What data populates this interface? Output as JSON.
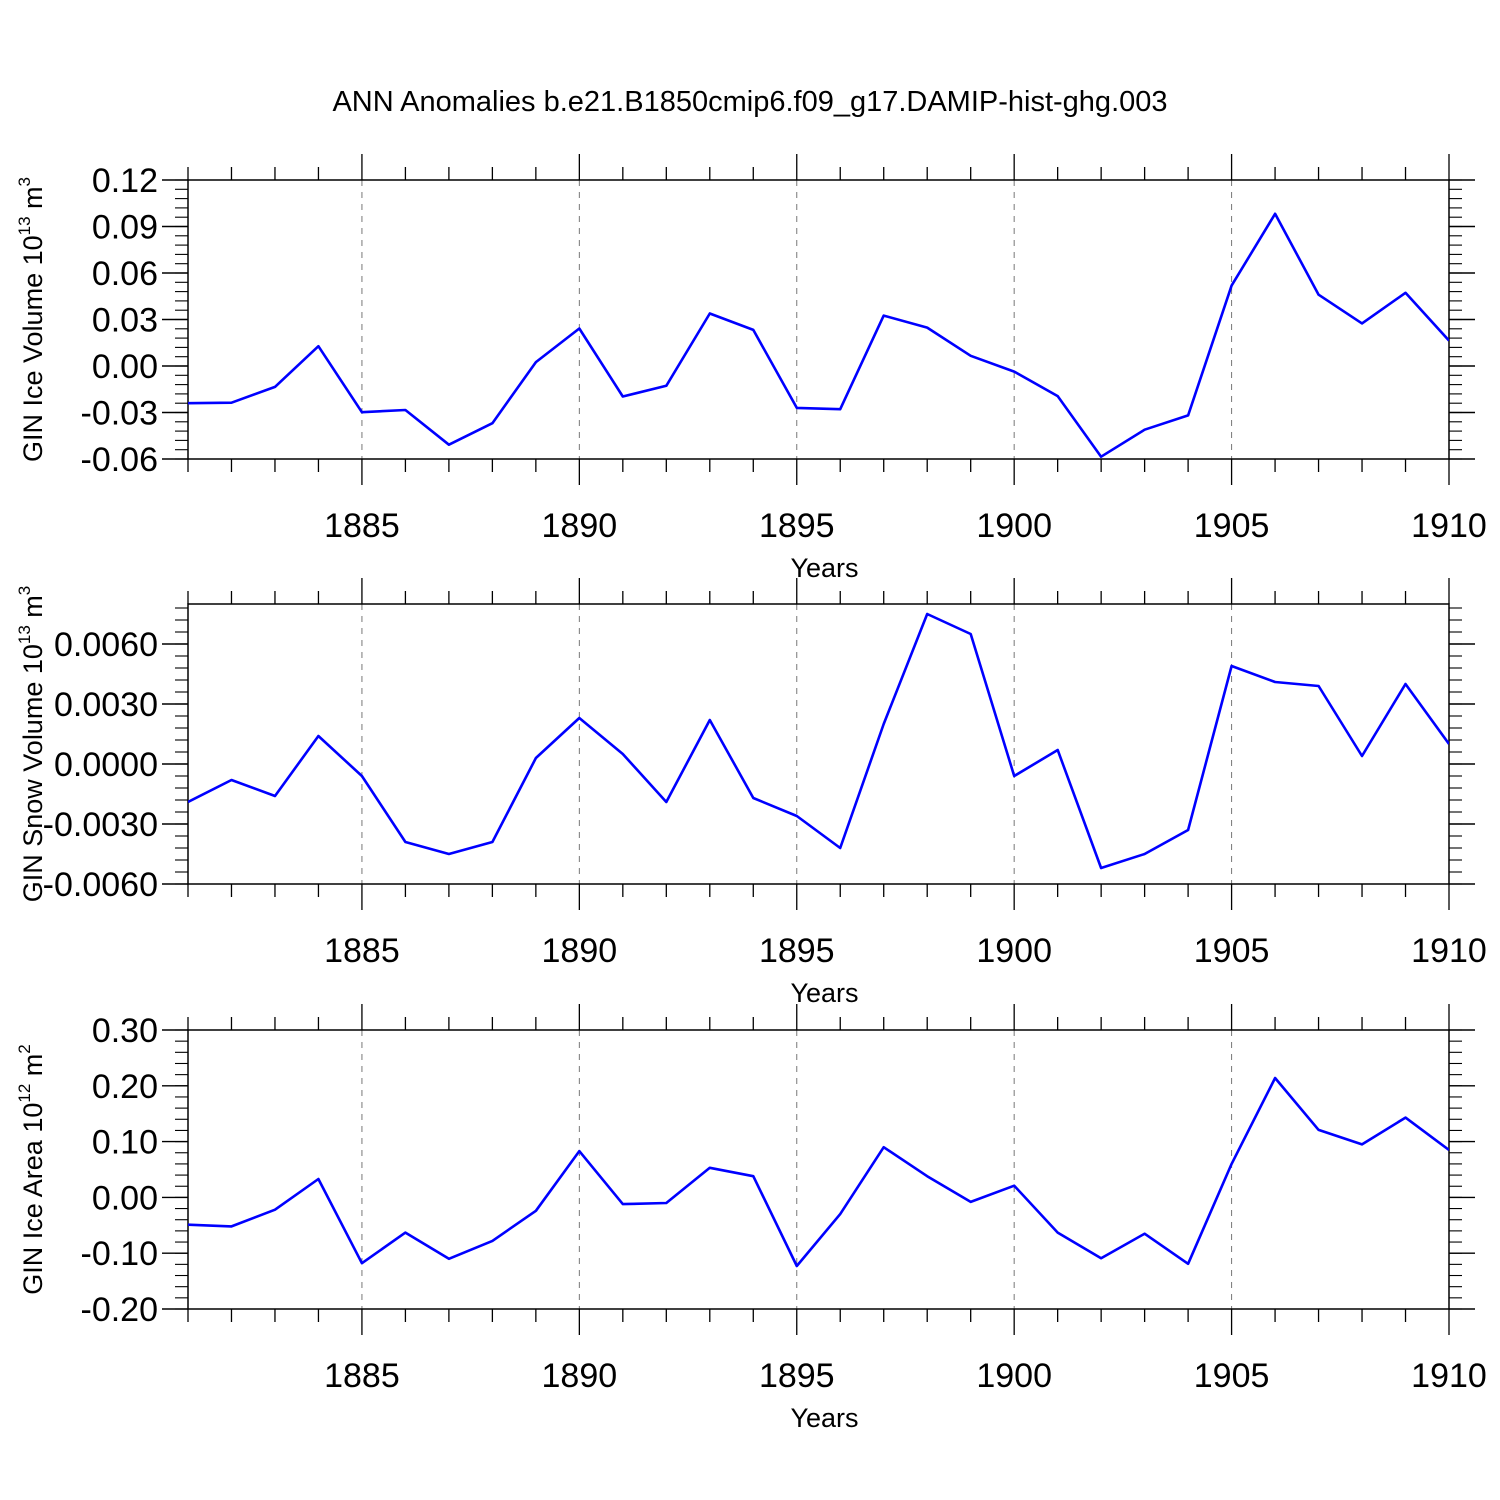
{
  "figure": {
    "title": "ANN Anomalies b.e21.B1850cmip6.f09_g17.DAMIP-hist-ghg.003"
  },
  "colors": {
    "line": "#0000ff",
    "axis": "#000000",
    "grid": "#777777"
  },
  "chart_data": [
    {
      "type": "line",
      "ylabel": "GIN Ice Volume 10",
      "ylabel_exp": "13",
      "ylabel_unit": "m",
      "ylabel_unit_exp": "3",
      "xlabel": "Years",
      "xlim": [
        1881,
        1910
      ],
      "ylim": [
        -0.06,
        0.12
      ],
      "xticks": [
        "1885",
        "1890",
        "1895",
        "1900",
        "1905",
        "1910"
      ],
      "yticks": [
        "0.12",
        "0.09",
        "0.06",
        "0.03",
        "0.00",
        "-0.03",
        "-0.06"
      ],
      "ytick_values": [
        0.12,
        0.09,
        0.06,
        0.03,
        0.0,
        -0.03,
        -0.06
      ],
      "x": [
        1881,
        1882,
        1883,
        1884,
        1885,
        1886,
        1887,
        1888,
        1889,
        1890,
        1891,
        1892,
        1893,
        1894,
        1895,
        1896,
        1897,
        1898,
        1899,
        1900,
        1901,
        1902,
        1903,
        1904,
        1905,
        1906,
        1907,
        1908,
        1909,
        1910
      ],
      "values": [
        -0.024,
        -0.0237,
        -0.0135,
        0.0128,
        -0.0298,
        -0.0284,
        -0.0508,
        -0.0369,
        0.0025,
        0.0242,
        -0.0197,
        -0.0128,
        0.0339,
        0.0233,
        -0.027,
        -0.0279,
        0.0325,
        0.0248,
        0.0066,
        -0.0036,
        -0.0194,
        -0.0585,
        -0.0411,
        -0.0319,
        0.0519,
        0.0982,
        0.046,
        0.0275,
        0.0472,
        0.0164
      ]
    },
    {
      "type": "line",
      "ylabel": "GIN Snow Volume 10",
      "ylabel_exp": "13",
      "ylabel_unit": "m",
      "ylabel_unit_exp": "3",
      "xlabel": "Years",
      "xlim": [
        1881,
        1910
      ],
      "ylim": [
        -0.006,
        0.008
      ],
      "xticks": [
        "1885",
        "1890",
        "1895",
        "1900",
        "1905",
        "1910"
      ],
      "yticks": [
        "0.0060",
        "0.0030",
        "0.0000",
        "-0.0030",
        "-0.0060"
      ],
      "ytick_values": [
        0.006,
        0.003,
        0.0,
        -0.003,
        -0.006
      ],
      "x": [
        1881,
        1882,
        1883,
        1884,
        1885,
        1886,
        1887,
        1888,
        1889,
        1890,
        1891,
        1892,
        1893,
        1894,
        1895,
        1896,
        1897,
        1898,
        1899,
        1900,
        1901,
        1902,
        1903,
        1904,
        1905,
        1906,
        1907,
        1908,
        1909,
        1910
      ],
      "values": [
        -0.0019,
        -0.0008,
        -0.0016,
        0.0014,
        -0.0006,
        -0.0039,
        -0.0045,
        -0.0039,
        0.0003,
        0.0023,
        0.0005,
        -0.0019,
        0.0022,
        -0.0017,
        -0.0026,
        -0.0042,
        0.002,
        0.0075,
        0.0065,
        -0.0006,
        0.0007,
        -0.0052,
        -0.0045,
        -0.0033,
        0.0049,
        0.0041,
        0.0039,
        0.0004,
        0.004,
        0.001
      ]
    },
    {
      "type": "line",
      "ylabel": "GIN Ice Area 10",
      "ylabel_exp": "12",
      "ylabel_unit": "m",
      "ylabel_unit_exp": "2",
      "xlabel": "Years",
      "xlim": [
        1881,
        1910
      ],
      "ylim": [
        -0.2,
        0.3
      ],
      "xticks": [
        "1885",
        "1890",
        "1895",
        "1900",
        "1905",
        "1910"
      ],
      "yticks": [
        "0.30",
        "0.20",
        "0.10",
        "0.00",
        "-0.10",
        "-0.20"
      ],
      "ytick_values": [
        0.3,
        0.2,
        0.1,
        0.0,
        -0.1,
        -0.2
      ],
      "x": [
        1881,
        1882,
        1883,
        1884,
        1885,
        1886,
        1887,
        1888,
        1889,
        1890,
        1891,
        1892,
        1893,
        1894,
        1895,
        1896,
        1897,
        1898,
        1899,
        1900,
        1901,
        1902,
        1903,
        1904,
        1905,
        1906,
        1907,
        1908,
        1909,
        1910
      ],
      "values": [
        -0.049,
        -0.052,
        -0.022,
        0.033,
        -0.118,
        -0.063,
        -0.11,
        -0.078,
        -0.024,
        0.083,
        -0.012,
        -0.01,
        0.053,
        0.038,
        -0.123,
        -0.03,
        0.09,
        0.038,
        -0.008,
        0.021,
        -0.063,
        -0.109,
        -0.065,
        -0.119,
        0.06,
        0.214,
        0.121,
        0.095,
        0.143,
        0.085
      ]
    }
  ]
}
